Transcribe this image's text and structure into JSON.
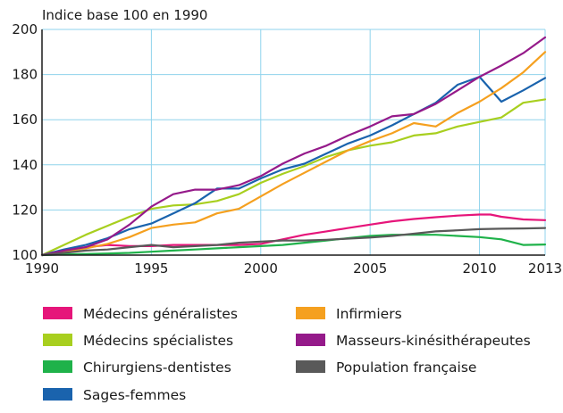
{
  "chart_data": {
    "type": "line",
    "unit_label": "Indice base 100 en 1990",
    "xlim": [
      1990,
      2013
    ],
    "ylim": [
      100,
      200
    ],
    "x_ticks": [
      1990,
      1995,
      2000,
      2005,
      2010,
      2013
    ],
    "y_ticks": [
      100,
      120,
      140,
      160,
      180,
      200
    ],
    "grid": true,
    "legend_position": "bottom",
    "series": [
      {
        "name": "Médecins généralistes",
        "color": "#e6157a",
        "x": [
          1990,
          1991,
          1992,
          1993,
          1994,
          1995,
          1996,
          1997,
          1998,
          1999,
          2000,
          2001,
          2002,
          2003,
          2004,
          2005,
          2006,
          2007,
          2008,
          2009,
          2010,
          2010.5,
          2011,
          2012,
          2013
        ],
        "y": [
          100,
          102,
          103.5,
          104.5,
          104,
          104,
          104.5,
          104.5,
          104.5,
          104.5,
          105,
          107,
          109,
          110.5,
          112,
          113.5,
          115,
          116,
          116.8,
          117.5,
          118,
          118,
          117,
          115.8,
          115.5
        ]
      },
      {
        "name": "Médecins spécialistes",
        "color": "#a8cf1f",
        "x": [
          1990,
          1991,
          1992,
          1993,
          1994,
          1995,
          1996,
          1997,
          1998,
          1999,
          2000,
          2001,
          2002,
          2003,
          2004,
          2005,
          2006,
          2007,
          2008,
          2009,
          2010,
          2011,
          2012,
          2013
        ],
        "y": [
          100,
          104.5,
          109,
          113,
          117,
          120.5,
          122,
          122.5,
          124,
          127,
          132,
          136,
          139.5,
          143.5,
          146.5,
          148.5,
          150,
          153,
          154,
          157,
          159,
          161,
          167.5,
          169
        ]
      },
      {
        "name": "Chirurgiens-dentistes",
        "color": "#1fb24a",
        "x": [
          1990,
          1991,
          1992,
          1993,
          1994,
          1995,
          1996,
          1997,
          1998,
          1999,
          2000,
          2001,
          2002,
          2003,
          2004,
          2005,
          2006,
          2007,
          2008,
          2009,
          2010,
          2011,
          2012,
          2013
        ],
        "y": [
          100,
          100.3,
          100.5,
          100.7,
          101,
          101.5,
          102,
          102.5,
          103,
          103.5,
          104,
          104.5,
          105.5,
          106.5,
          107.5,
          108.5,
          109,
          109,
          109,
          108.5,
          108,
          107,
          104.5,
          104.7
        ]
      },
      {
        "name": "Sages-femmes",
        "color": "#1a63ad",
        "x": [
          1990,
          1991,
          1992,
          1993,
          1994,
          1995,
          1996,
          1997,
          1998,
          1999,
          2000,
          2001,
          2002,
          2003,
          2004,
          2005,
          2006,
          2007,
          2008,
          2009,
          2010,
          2011,
          2012,
          2013
        ],
        "y": [
          100,
          102.5,
          104.5,
          107.5,
          111.5,
          114,
          118.5,
          123,
          129.5,
          129.5,
          134,
          138,
          140.5,
          145,
          149.5,
          153,
          157.5,
          162.5,
          167.5,
          175.5,
          179,
          168,
          173,
          178.5
        ]
      },
      {
        "name": "Infirmiers",
        "color": "#f5a01f",
        "x": [
          1990,
          1991,
          1992,
          1993,
          1994,
          1995,
          1996,
          1997,
          1998,
          1999,
          2000,
          2001,
          2002,
          2003,
          2004,
          2005,
          2006,
          2007,
          2008,
          2009,
          2010,
          2011,
          2012,
          2013
        ],
        "y": [
          100,
          101.5,
          103,
          105,
          108,
          112,
          113.5,
          114.5,
          118.5,
          120.5,
          126,
          131.5,
          136.5,
          141.5,
          146.5,
          150.5,
          154,
          158.5,
          157,
          163,
          168,
          174,
          181,
          190
        ]
      },
      {
        "name": "Masseurs-kinésithérapeutes",
        "color": "#951a8a",
        "x": [
          1990,
          1991,
          1992,
          1993,
          1994,
          1995,
          1996,
          1997,
          1998,
          1999,
          2000,
          2001,
          2002,
          2003,
          2004,
          2005,
          2006,
          2007,
          2008,
          2009,
          2010,
          2011,
          2012,
          2013
        ],
        "y": [
          100,
          102,
          103.5,
          107,
          113.5,
          121.5,
          127,
          129,
          129,
          131,
          135,
          140.5,
          145,
          148.5,
          153,
          157,
          161.5,
          162.5,
          167,
          173,
          179,
          184,
          189.5,
          196.5
        ]
      },
      {
        "name": "Population française",
        "color": "#595959",
        "x": [
          1990,
          1991,
          1992,
          1993,
          1994,
          1995,
          1996,
          1997,
          1998,
          1999,
          2000,
          2001,
          2002,
          2003,
          2004,
          2005,
          2006,
          2007,
          2008,
          2009,
          2010,
          2011,
          2012,
          2013
        ],
        "y": [
          100,
          101,
          102,
          102.5,
          103.5,
          104.5,
          103.5,
          104,
          104.5,
          105.5,
          106,
          106.5,
          106.5,
          106.8,
          107.3,
          107.8,
          108.5,
          109.5,
          110.5,
          111,
          111.5,
          111.7,
          111.8,
          112
        ]
      }
    ]
  },
  "legend_order": [
    0,
    4,
    1,
    5,
    2,
    6,
    3
  ]
}
